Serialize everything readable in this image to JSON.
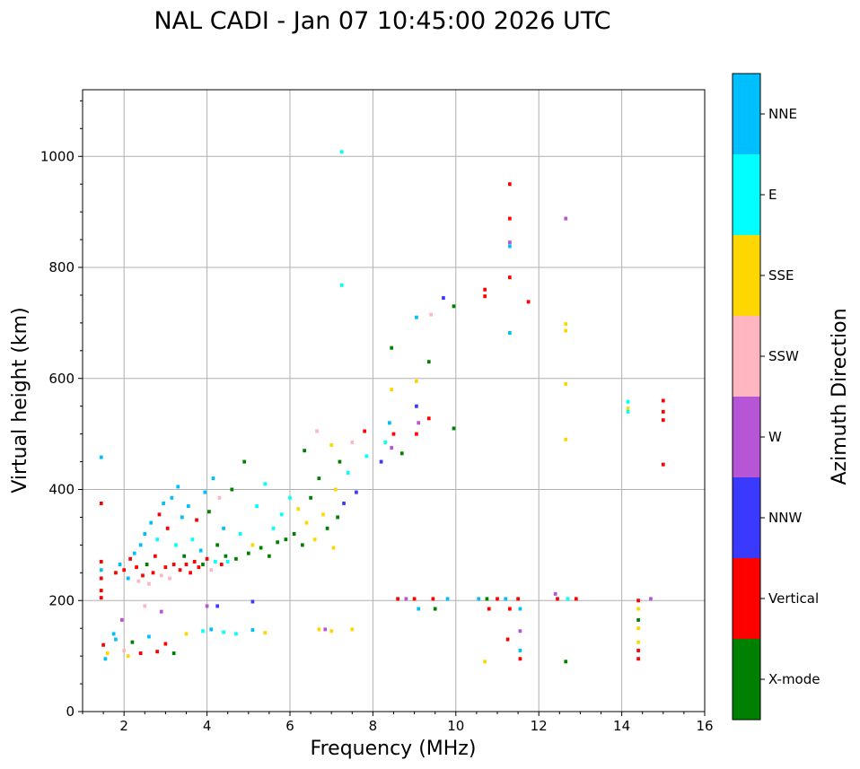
{
  "chart_data": {
    "type": "scatter",
    "title": "NAL CADI - Jan 07 10:45:00 2026 UTC",
    "xlabel": "Frequency (MHz)",
    "ylabel": "Virtual height (km)",
    "xlim": [
      1,
      16
    ],
    "ylim": [
      0,
      1120
    ],
    "xticks": [
      2,
      4,
      6,
      8,
      10,
      12,
      14,
      16
    ],
    "yticks": [
      0,
      200,
      400,
      600,
      800,
      1000
    ],
    "grid": true,
    "colorbar": {
      "label": "Azimuth Direction",
      "categories": [
        {
          "name": "X-mode",
          "color": "#008000"
        },
        {
          "name": "Vertical",
          "color": "#ff0000"
        },
        {
          "name": "NNW",
          "color": "#3a3aff"
        },
        {
          "name": "W",
          "color": "#b655d6"
        },
        {
          "name": "SSW",
          "color": "#ffb6c1"
        },
        {
          "name": "SSE",
          "color": "#ffd700"
        },
        {
          "name": "E",
          "color": "#00ffff"
        },
        {
          "name": "NNE",
          "color": "#00bfff"
        }
      ]
    },
    "bin_width_mhz": 0.08,
    "points": [
      {
        "f": 1.45,
        "h": 458,
        "c": "NNE"
      },
      {
        "f": 1.45,
        "h": 375,
        "c": "Vertical"
      },
      {
        "f": 1.45,
        "h": 270,
        "c": "Vertical"
      },
      {
        "f": 1.45,
        "h": 255,
        "c": "NNE"
      },
      {
        "f": 1.45,
        "h": 240,
        "c": "Vertical"
      },
      {
        "f": 1.45,
        "h": 218,
        "c": "Vertical"
      },
      {
        "f": 1.45,
        "h": 205,
        "c": "Vertical"
      },
      {
        "f": 1.5,
        "h": 120,
        "c": "Vertical"
      },
      {
        "f": 1.55,
        "h": 95,
        "c": "NNE"
      },
      {
        "f": 1.6,
        "h": 105,
        "c": "SSE"
      },
      {
        "f": 1.8,
        "h": 250,
        "c": "Vertical"
      },
      {
        "f": 1.9,
        "h": 265,
        "c": "NNE"
      },
      {
        "f": 2.0,
        "h": 255,
        "c": "Vertical"
      },
      {
        "f": 2.1,
        "h": 240,
        "c": "NNE"
      },
      {
        "f": 2.15,
        "h": 275,
        "c": "Vertical"
      },
      {
        "f": 2.25,
        "h": 285,
        "c": "NNE"
      },
      {
        "f": 2.3,
        "h": 260,
        "c": "Vertical"
      },
      {
        "f": 2.35,
        "h": 235,
        "c": "SSW"
      },
      {
        "f": 2.4,
        "h": 300,
        "c": "NNE"
      },
      {
        "f": 2.45,
        "h": 245,
        "c": "Vertical"
      },
      {
        "f": 2.5,
        "h": 320,
        "c": "NNE"
      },
      {
        "f": 2.55,
        "h": 265,
        "c": "X-mode"
      },
      {
        "f": 2.6,
        "h": 230,
        "c": "SSW"
      },
      {
        "f": 2.65,
        "h": 340,
        "c": "NNE"
      },
      {
        "f": 2.7,
        "h": 250,
        "c": "Vertical"
      },
      {
        "f": 2.75,
        "h": 280,
        "c": "Vertical"
      },
      {
        "f": 2.8,
        "h": 310,
        "c": "E"
      },
      {
        "f": 2.85,
        "h": 355,
        "c": "Vertical"
      },
      {
        "f": 2.9,
        "h": 245,
        "c": "SSW"
      },
      {
        "f": 2.95,
        "h": 375,
        "c": "NNE"
      },
      {
        "f": 3.0,
        "h": 260,
        "c": "Vertical"
      },
      {
        "f": 3.05,
        "h": 330,
        "c": "Vertical"
      },
      {
        "f": 3.1,
        "h": 240,
        "c": "SSW"
      },
      {
        "f": 3.15,
        "h": 385,
        "c": "NNE"
      },
      {
        "f": 3.2,
        "h": 265,
        "c": "Vertical"
      },
      {
        "f": 3.25,
        "h": 300,
        "c": "E"
      },
      {
        "f": 3.3,
        "h": 405,
        "c": "NNE"
      },
      {
        "f": 3.35,
        "h": 255,
        "c": "Vertical"
      },
      {
        "f": 3.4,
        "h": 350,
        "c": "NNE"
      },
      {
        "f": 3.45,
        "h": 280,
        "c": "X-mode"
      },
      {
        "f": 3.5,
        "h": 265,
        "c": "Vertical"
      },
      {
        "f": 3.55,
        "h": 370,
        "c": "NNE"
      },
      {
        "f": 3.6,
        "h": 250,
        "c": "Vertical"
      },
      {
        "f": 3.65,
        "h": 310,
        "c": "E"
      },
      {
        "f": 3.7,
        "h": 270,
        "c": "Vertical"
      },
      {
        "f": 3.75,
        "h": 345,
        "c": "Vertical"
      },
      {
        "f": 3.8,
        "h": 260,
        "c": "Vertical"
      },
      {
        "f": 3.85,
        "h": 290,
        "c": "NNE"
      },
      {
        "f": 3.9,
        "h": 265,
        "c": "X-mode"
      },
      {
        "f": 3.95,
        "h": 395,
        "c": "NNE"
      },
      {
        "f": 4.0,
        "h": 275,
        "c": "Vertical"
      },
      {
        "f": 4.05,
        "h": 360,
        "c": "X-mode"
      },
      {
        "f": 4.1,
        "h": 255,
        "c": "SSW"
      },
      {
        "f": 4.15,
        "h": 420,
        "c": "NNE"
      },
      {
        "f": 4.2,
        "h": 270,
        "c": "E"
      },
      {
        "f": 4.25,
        "h": 300,
        "c": "X-mode"
      },
      {
        "f": 4.3,
        "h": 385,
        "c": "SSW"
      },
      {
        "f": 4.35,
        "h": 265,
        "c": "Vertical"
      },
      {
        "f": 4.4,
        "h": 330,
        "c": "NNE"
      },
      {
        "f": 4.45,
        "h": 280,
        "c": "X-mode"
      },
      {
        "f": 4.5,
        "h": 270,
        "c": "E"
      },
      {
        "f": 4.6,
        "h": 400,
        "c": "X-mode"
      },
      {
        "f": 4.7,
        "h": 275,
        "c": "X-mode"
      },
      {
        "f": 4.8,
        "h": 320,
        "c": "E"
      },
      {
        "f": 4.9,
        "h": 450,
        "c": "X-mode"
      },
      {
        "f": 5.0,
        "h": 285,
        "c": "X-mode"
      },
      {
        "f": 5.1,
        "h": 300,
        "c": "SSE"
      },
      {
        "f": 5.2,
        "h": 370,
        "c": "E"
      },
      {
        "f": 5.3,
        "h": 295,
        "c": "X-mode"
      },
      {
        "f": 5.4,
        "h": 410,
        "c": "E"
      },
      {
        "f": 5.5,
        "h": 280,
        "c": "X-mode"
      },
      {
        "f": 5.6,
        "h": 330,
        "c": "E"
      },
      {
        "f": 5.7,
        "h": 305,
        "c": "X-mode"
      },
      {
        "f": 5.8,
        "h": 355,
        "c": "E"
      },
      {
        "f": 5.9,
        "h": 310,
        "c": "X-mode"
      },
      {
        "f": 6.0,
        "h": 385,
        "c": "E"
      },
      {
        "f": 6.1,
        "h": 320,
        "c": "X-mode"
      },
      {
        "f": 6.2,
        "h": 365,
        "c": "SSE"
      },
      {
        "f": 6.3,
        "h": 300,
        "c": "X-mode"
      },
      {
        "f": 6.35,
        "h": 470,
        "c": "X-mode"
      },
      {
        "f": 6.4,
        "h": 340,
        "c": "SSE"
      },
      {
        "f": 6.5,
        "h": 385,
        "c": "X-mode"
      },
      {
        "f": 6.6,
        "h": 310,
        "c": "SSE"
      },
      {
        "f": 6.65,
        "h": 505,
        "c": "SSW"
      },
      {
        "f": 6.7,
        "h": 420,
        "c": "X-mode"
      },
      {
        "f": 6.8,
        "h": 355,
        "c": "SSE"
      },
      {
        "f": 6.9,
        "h": 330,
        "c": "X-mode"
      },
      {
        "f": 7.0,
        "h": 480,
        "c": "SSE"
      },
      {
        "f": 7.05,
        "h": 295,
        "c": "SSE"
      },
      {
        "f": 7.1,
        "h": 400,
        "c": "SSE"
      },
      {
        "f": 7.15,
        "h": 350,
        "c": "X-mode"
      },
      {
        "f": 7.2,
        "h": 450,
        "c": "X-mode"
      },
      {
        "f": 7.25,
        "h": 1008,
        "c": "E"
      },
      {
        "f": 7.25,
        "h": 768,
        "c": "E"
      },
      {
        "f": 7.3,
        "h": 375,
        "c": "NNW"
      },
      {
        "f": 7.4,
        "h": 430,
        "c": "E"
      },
      {
        "f": 7.5,
        "h": 485,
        "c": "SSW"
      },
      {
        "f": 7.6,
        "h": 395,
        "c": "NNW"
      },
      {
        "f": 7.8,
        "h": 505,
        "c": "Vertical"
      },
      {
        "f": 7.85,
        "h": 460,
        "c": "E"
      },
      {
        "f": 8.2,
        "h": 450,
        "c": "NNW"
      },
      {
        "f": 8.3,
        "h": 485,
        "c": "E"
      },
      {
        "f": 8.4,
        "h": 520,
        "c": "NNE"
      },
      {
        "f": 8.45,
        "h": 580,
        "c": "SSE"
      },
      {
        "f": 8.45,
        "h": 475,
        "c": "W"
      },
      {
        "f": 8.45,
        "h": 655,
        "c": "X-mode"
      },
      {
        "f": 8.5,
        "h": 500,
        "c": "Vertical"
      },
      {
        "f": 8.7,
        "h": 465,
        "c": "X-mode"
      },
      {
        "f": 9.05,
        "h": 595,
        "c": "SSE"
      },
      {
        "f": 9.05,
        "h": 550,
        "c": "NNW"
      },
      {
        "f": 9.05,
        "h": 710,
        "c": "NNE"
      },
      {
        "f": 9.05,
        "h": 500,
        "c": "Vertical"
      },
      {
        "f": 9.1,
        "h": 520,
        "c": "W"
      },
      {
        "f": 9.35,
        "h": 630,
        "c": "X-mode"
      },
      {
        "f": 9.35,
        "h": 528,
        "c": "Vertical"
      },
      {
        "f": 9.4,
        "h": 715,
        "c": "SSW"
      },
      {
        "f": 9.7,
        "h": 745,
        "c": "NNW"
      },
      {
        "f": 9.95,
        "h": 730,
        "c": "X-mode"
      },
      {
        "f": 9.95,
        "h": 510,
        "c": "X-mode"
      },
      {
        "f": 10.7,
        "h": 760,
        "c": "Vertical"
      },
      {
        "f": 10.7,
        "h": 748,
        "c": "Vertical"
      },
      {
        "f": 11.3,
        "h": 950,
        "c": "Vertical"
      },
      {
        "f": 11.3,
        "h": 888,
        "c": "Vertical"
      },
      {
        "f": 11.3,
        "h": 845,
        "c": "W"
      },
      {
        "f": 11.3,
        "h": 838,
        "c": "NNE"
      },
      {
        "f": 11.3,
        "h": 782,
        "c": "Vertical"
      },
      {
        "f": 11.3,
        "h": 682,
        "c": "NNE"
      },
      {
        "f": 11.75,
        "h": 738,
        "c": "Vertical"
      },
      {
        "f": 12.65,
        "h": 888,
        "c": "W"
      },
      {
        "f": 12.65,
        "h": 698,
        "c": "SSE"
      },
      {
        "f": 12.65,
        "h": 686,
        "c": "SSE"
      },
      {
        "f": 12.65,
        "h": 590,
        "c": "SSE"
      },
      {
        "f": 12.65,
        "h": 490,
        "c": "SSE"
      },
      {
        "f": 14.15,
        "h": 558,
        "c": "E"
      },
      {
        "f": 14.15,
        "h": 546,
        "c": "SSE"
      },
      {
        "f": 14.15,
        "h": 540,
        "c": "E"
      },
      {
        "f": 15.0,
        "h": 560,
        "c": "Vertical"
      },
      {
        "f": 15.0,
        "h": 540,
        "c": "Vertical"
      },
      {
        "f": 15.0,
        "h": 525,
        "c": "Vertical"
      },
      {
        "f": 15.0,
        "h": 445,
        "c": "Vertical"
      },
      {
        "f": 8.6,
        "h": 203,
        "c": "Vertical"
      },
      {
        "f": 8.8,
        "h": 203,
        "c": "W"
      },
      {
        "f": 9.0,
        "h": 203,
        "c": "Vertical"
      },
      {
        "f": 9.1,
        "h": 185,
        "c": "NNE"
      },
      {
        "f": 9.45,
        "h": 203,
        "c": "Vertical"
      },
      {
        "f": 9.5,
        "h": 185,
        "c": "X-mode"
      },
      {
        "f": 9.8,
        "h": 203,
        "c": "NNE"
      },
      {
        "f": 10.55,
        "h": 203,
        "c": "NNE"
      },
      {
        "f": 10.75,
        "h": 203,
        "c": "X-mode"
      },
      {
        "f": 10.8,
        "h": 185,
        "c": "Vertical"
      },
      {
        "f": 11.0,
        "h": 203,
        "c": "Vertical"
      },
      {
        "f": 11.2,
        "h": 203,
        "c": "NNE"
      },
      {
        "f": 11.3,
        "h": 185,
        "c": "Vertical"
      },
      {
        "f": 11.5,
        "h": 203,
        "c": "Vertical"
      },
      {
        "f": 11.55,
        "h": 185,
        "c": "NNE"
      },
      {
        "f": 12.4,
        "h": 212,
        "c": "W"
      },
      {
        "f": 12.45,
        "h": 203,
        "c": "Vertical"
      },
      {
        "f": 12.7,
        "h": 203,
        "c": "E"
      },
      {
        "f": 12.9,
        "h": 203,
        "c": "Vertical"
      },
      {
        "f": 14.4,
        "h": 200,
        "c": "Vertical"
      },
      {
        "f": 14.4,
        "h": 185,
        "c": "SSE"
      },
      {
        "f": 14.4,
        "h": 165,
        "c": "X-mode"
      },
      {
        "f": 14.4,
        "h": 150,
        "c": "SSE"
      },
      {
        "f": 14.4,
        "h": 125,
        "c": "SSE"
      },
      {
        "f": 14.4,
        "h": 110,
        "c": "Vertical"
      },
      {
        "f": 14.4,
        "h": 95,
        "c": "Vertical"
      },
      {
        "f": 14.7,
        "h": 203,
        "c": "W"
      },
      {
        "f": 11.25,
        "h": 130,
        "c": "Vertical"
      },
      {
        "f": 11.55,
        "h": 145,
        "c": "W"
      },
      {
        "f": 11.55,
        "h": 110,
        "c": "NNE"
      },
      {
        "f": 11.55,
        "h": 95,
        "c": "Vertical"
      },
      {
        "f": 10.7,
        "h": 90,
        "c": "SSE"
      },
      {
        "f": 12.65,
        "h": 90,
        "c": "X-mode"
      },
      {
        "f": 4.0,
        "h": 190,
        "c": "W"
      },
      {
        "f": 4.25,
        "h": 190,
        "c": "NNW"
      },
      {
        "f": 5.1,
        "h": 198,
        "c": "NNW"
      },
      {
        "f": 3.5,
        "h": 140,
        "c": "SSE"
      },
      {
        "f": 3.9,
        "h": 145,
        "c": "E"
      },
      {
        "f": 4.1,
        "h": 148,
        "c": "NNE"
      },
      {
        "f": 4.4,
        "h": 143,
        "c": "E"
      },
      {
        "f": 4.7,
        "h": 140,
        "c": "E"
      },
      {
        "f": 5.1,
        "h": 147,
        "c": "NNE"
      },
      {
        "f": 5.4,
        "h": 142,
        "c": "SSE"
      },
      {
        "f": 6.7,
        "h": 148,
        "c": "SSE"
      },
      {
        "f": 6.85,
        "h": 148,
        "c": "W"
      },
      {
        "f": 7.0,
        "h": 145,
        "c": "SSE"
      },
      {
        "f": 7.5,
        "h": 148,
        "c": "SSE"
      },
      {
        "f": 1.8,
        "h": 130,
        "c": "NNE"
      },
      {
        "f": 2.0,
        "h": 110,
        "c": "SSW"
      },
      {
        "f": 2.2,
        "h": 125,
        "c": "X-mode"
      },
      {
        "f": 2.4,
        "h": 105,
        "c": "Vertical"
      },
      {
        "f": 2.5,
        "h": 190,
        "c": "SSW"
      },
      {
        "f": 2.6,
        "h": 135,
        "c": "NNE"
      },
      {
        "f": 2.8,
        "h": 108,
        "c": "Vertical"
      },
      {
        "f": 3.0,
        "h": 122,
        "c": "Vertical"
      },
      {
        "f": 3.2,
        "h": 105,
        "c": "X-mode"
      },
      {
        "f": 1.95,
        "h": 165,
        "c": "W"
      },
      {
        "f": 2.1,
        "h": 100,
        "c": "SSE"
      },
      {
        "f": 2.9,
        "h": 180,
        "c": "W"
      },
      {
        "f": 1.75,
        "h": 140,
        "c": "NNE"
      }
    ]
  }
}
